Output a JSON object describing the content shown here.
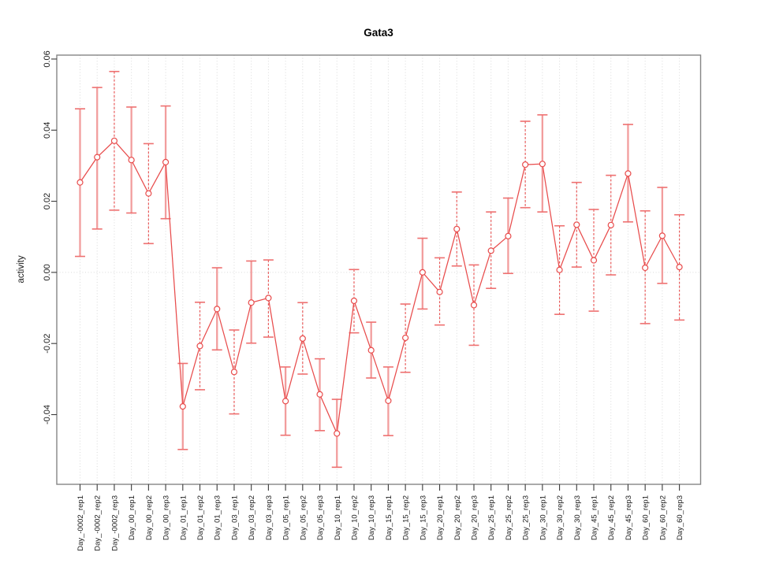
{
  "chart_data": {
    "type": "line",
    "title": "Gata3",
    "xlabel": "",
    "ylabel": "activity",
    "legend_position": "none",
    "grid": {
      "vertical_dotted_per_category": true,
      "horizontal_dotted_zero_line": true
    },
    "ylim": [
      -0.0596,
      0.0611
    ],
    "y_tick_values": [
      -0.04,
      -0.02,
      0.0,
      0.02,
      0.04,
      0.06
    ],
    "y_tick_labels": [
      "-0.04",
      "-0.02",
      "0.00",
      "0.02",
      "0.04",
      "0.06"
    ],
    "categories": [
      "Day_-0002_rep1",
      "Day_-0002_rep2",
      "Day_-0002_rep3",
      "Day_00_rep1",
      "Day_00_rep2",
      "Day_00_rep3",
      "Day_01_rep1",
      "Day_01_rep2",
      "Day_01_rep3",
      "Day_03_rep1",
      "Day_03_rep2",
      "Day_03_rep3",
      "Day_05_rep1",
      "Day_05_rep2",
      "Day_05_rep3",
      "Day_10_rep1",
      "Day_10_rep2",
      "Day_10_rep3",
      "Day_15_rep1",
      "Day_15_rep2",
      "Day_15_rep3",
      "Day_20_rep1",
      "Day_20_rep2",
      "Day_20_rep3",
      "Day_25_rep1",
      "Day_25_rep2",
      "Day_25_rep3",
      "Day_30_rep1",
      "Day_30_rep2",
      "Day_30_rep3",
      "Day_45_rep1",
      "Day_45_rep2",
      "Day_45_rep3",
      "Day_60_rep1",
      "Day_60_rep2",
      "Day_60_rep3"
    ],
    "series": [
      {
        "name": "Gata3 activity",
        "marker": "open-circle",
        "line_style": "solid",
        "values": [
          0.0253,
          0.0324,
          0.037,
          0.0316,
          0.0222,
          0.031,
          -0.0377,
          -0.0207,
          -0.0103,
          -0.028,
          -0.0085,
          -0.0072,
          -0.0362,
          -0.0186,
          -0.0343,
          -0.0453,
          -0.008,
          -0.0219,
          -0.0361,
          -0.0184,
          0.0,
          -0.0055,
          0.0122,
          -0.0092,
          0.0061,
          0.0102,
          0.0303,
          0.0305,
          0.0007,
          0.0134,
          0.0034,
          0.0133,
          0.0278,
          0.0013,
          0.0103,
          0.0015
        ],
        "err_lo": [
          0.0045,
          0.0122,
          0.0175,
          0.0167,
          0.0081,
          0.0151,
          -0.0498,
          -0.033,
          -0.0218,
          -0.0398,
          -0.0199,
          -0.0182,
          -0.0458,
          -0.0286,
          -0.0445,
          -0.0548,
          -0.017,
          -0.0297,
          -0.0459,
          -0.0281,
          -0.0103,
          -0.0148,
          0.0018,
          -0.0205,
          -0.0045,
          -0.0003,
          0.0182,
          0.017,
          -0.0118,
          0.0015,
          -0.0109,
          -0.0007,
          0.0142,
          -0.0144,
          -0.0031,
          -0.0134
        ],
        "err_hi": [
          0.046,
          0.052,
          0.0565,
          0.0465,
          0.0362,
          0.0468,
          -0.0256,
          -0.0084,
          0.0013,
          -0.0162,
          0.0032,
          0.0035,
          -0.0266,
          -0.0085,
          -0.0243,
          -0.0357,
          0.0008,
          -0.014,
          -0.0266,
          -0.0089,
          0.0096,
          0.0041,
          0.0226,
          0.0021,
          0.017,
          0.0209,
          0.0425,
          0.0443,
          0.0131,
          0.0253,
          0.0177,
          0.0273,
          0.0416,
          0.0173,
          0.0239,
          0.0162
        ],
        "errorbar_styles": [
          "solid",
          "solid",
          "dashed",
          "solid",
          "dashed",
          "solid",
          "solid",
          "dashed",
          "solid",
          "dashed",
          "solid",
          "dashed",
          "solid",
          "dashed",
          "solid",
          "solid",
          "dashed",
          "solid",
          "solid",
          "dashed",
          "solid",
          "dashed",
          "dashed",
          "dashed",
          "dashed",
          "solid",
          "dashed",
          "solid",
          "dashed",
          "dashed",
          "dashed",
          "dashed",
          "solid",
          "dashed",
          "solid",
          "dashed"
        ]
      }
    ],
    "colors": {
      "line": "#e84c4c",
      "marker": "#e84c4c",
      "errorbar_solid": "#f29d9d",
      "errorbar_dashed": "#e85555",
      "errorbar_cap": "#ee7070",
      "grid": "#d9d9d9",
      "axis_box": "#858585",
      "tick": "#3a3a3a",
      "tick_label": "#1a1a1a",
      "background": "#ffffff"
    }
  }
}
